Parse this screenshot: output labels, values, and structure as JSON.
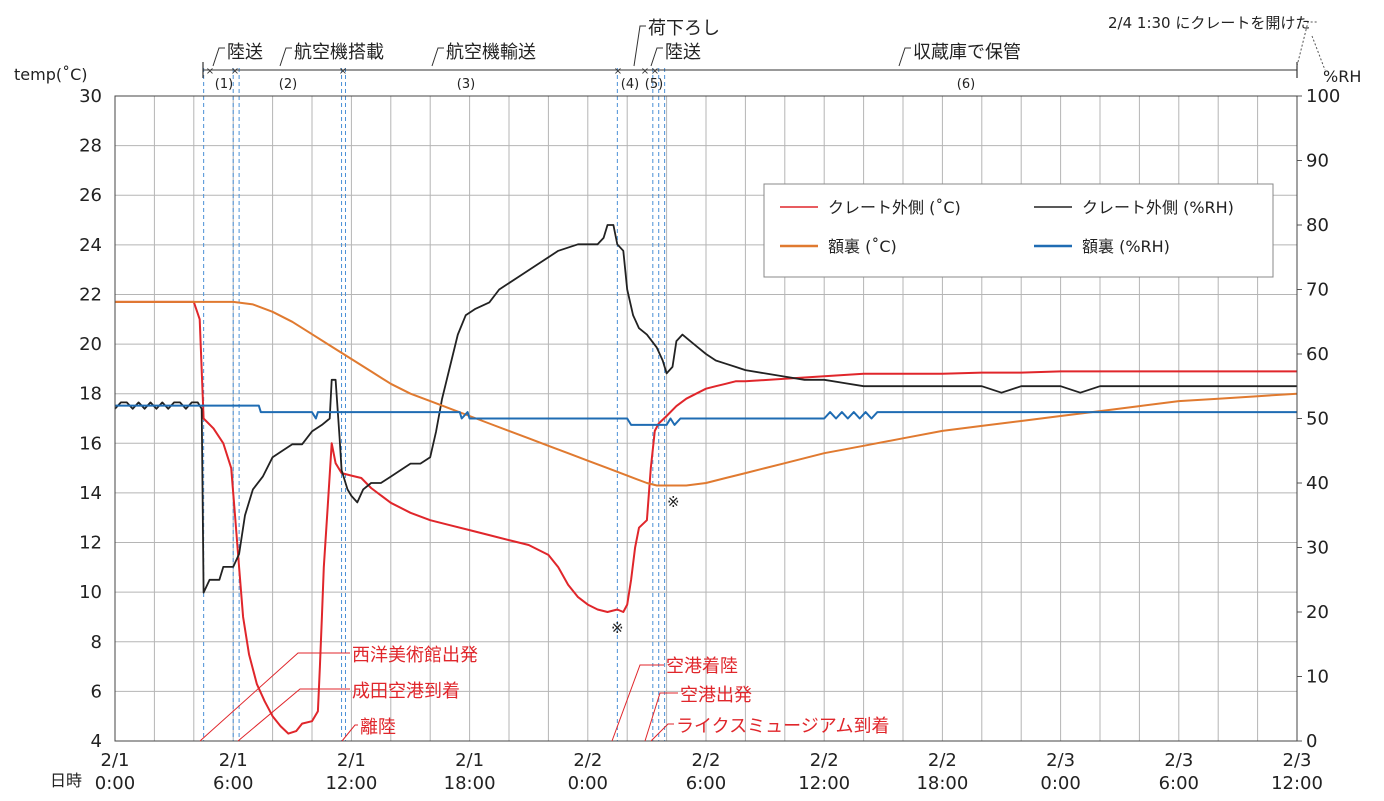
{
  "chart_data": {
    "type": "line",
    "y_left_label": "temp(˚C)",
    "y_right_label": "%RH",
    "x_axis_label": "日時",
    "y_left_range": [
      4,
      30
    ],
    "y_left_ticks": [
      "4",
      "6",
      "8",
      "10",
      "12",
      "14",
      "16",
      "18",
      "20",
      "22",
      "24",
      "26",
      "28",
      "30"
    ],
    "y_right_range": [
      0,
      100
    ],
    "y_right_ticks": [
      "0",
      "10",
      "20",
      "30",
      "40",
      "50",
      "60",
      "70",
      "80",
      "90",
      "100"
    ],
    "x_range_hours": [
      0,
      60
    ],
    "x_ticks": [
      {
        "date": "2/1",
        "time": "0:00"
      },
      {
        "date": "2/1",
        "time": "6:00"
      },
      {
        "date": "2/1",
        "time": "12:00"
      },
      {
        "date": "2/1",
        "time": "18:00"
      },
      {
        "date": "2/2",
        "time": "0:00"
      },
      {
        "date": "2/2",
        "time": "6:00"
      },
      {
        "date": "2/2",
        "time": "12:00"
      },
      {
        "date": "2/2",
        "time": "18:00"
      },
      {
        "date": "2/3",
        "time": "0:00"
      },
      {
        "date": "2/3",
        "time": "6:00"
      },
      {
        "date": "2/3",
        "time": "12:00"
      }
    ],
    "legend": [
      {
        "label": "クレート外側 (˚C)",
        "color": "#e0262b"
      },
      {
        "label": "クレート外側 (%RH)",
        "color": "#222222"
      },
      {
        "label": "額裏 (˚C)",
        "color": "#e07a30"
      },
      {
        "label": "額裏 (%RH)",
        "color": "#1f6cb3"
      }
    ],
    "phases": [
      {
        "label": "陸送",
        "num": "(1)"
      },
      {
        "label": "航空機搭載",
        "num": "(2)"
      },
      {
        "label": "航空機輸送",
        "num": "(3)"
      },
      {
        "label": "荷下ろし",
        "num": "(4)"
      },
      {
        "label": "陸送",
        "num": "(5)"
      },
      {
        "label": "収蔵庫で保管",
        "num": "(6)"
      }
    ],
    "top_note": "2/4 1:30 にクレートを開けた",
    "events": [
      "西洋美術館出発",
      "成田空港到着",
      "離陸",
      "空港着陸",
      "空港出発",
      "ライクスミュージアム到着"
    ],
    "marker_symbol": "※",
    "series": [
      {
        "name": "クレート外側 (˚C)",
        "axis": "left",
        "color": "#e0262b",
        "points": [
          [
            0,
            21.7
          ],
          [
            4.0,
            21.7
          ],
          [
            4.3,
            21.0
          ],
          [
            4.5,
            17.0
          ],
          [
            5.0,
            16.6
          ],
          [
            5.5,
            16.0
          ],
          [
            5.9,
            15.0
          ],
          [
            6.1,
            13.0
          ],
          [
            6.3,
            11.0
          ],
          [
            6.5,
            9.0
          ],
          [
            6.8,
            7.5
          ],
          [
            7.2,
            6.3
          ],
          [
            7.6,
            5.6
          ],
          [
            8.0,
            5.0
          ],
          [
            8.4,
            4.6
          ],
          [
            8.8,
            4.3
          ],
          [
            9.2,
            4.4
          ],
          [
            9.5,
            4.7
          ],
          [
            10.0,
            4.8
          ],
          [
            10.3,
            5.2
          ],
          [
            10.4,
            7.0
          ],
          [
            10.5,
            9.0
          ],
          [
            10.6,
            11.0
          ],
          [
            10.8,
            13.5
          ],
          [
            11.0,
            16.0
          ],
          [
            11.2,
            15.2
          ],
          [
            11.5,
            14.8
          ],
          [
            12.0,
            14.7
          ],
          [
            12.5,
            14.6
          ],
          [
            13.0,
            14.2
          ],
          [
            14.0,
            13.6
          ],
          [
            15.0,
            13.2
          ],
          [
            16.0,
            12.9
          ],
          [
            17.0,
            12.7
          ],
          [
            18.0,
            12.5
          ],
          [
            19.0,
            12.3
          ],
          [
            20.0,
            12.1
          ],
          [
            21.0,
            11.9
          ],
          [
            22.0,
            11.5
          ],
          [
            22.5,
            11.0
          ],
          [
            23.0,
            10.3
          ],
          [
            23.5,
            9.8
          ],
          [
            24.0,
            9.5
          ],
          [
            24.5,
            9.3
          ],
          [
            25.0,
            9.2
          ],
          [
            25.5,
            9.3
          ],
          [
            25.8,
            9.2
          ],
          [
            26.0,
            9.5
          ],
          [
            26.2,
            10.5
          ],
          [
            26.4,
            11.8
          ],
          [
            26.6,
            12.6
          ],
          [
            27.0,
            12.9
          ],
          [
            27.2,
            15.0
          ],
          [
            27.4,
            16.5
          ],
          [
            27.6,
            16.8
          ],
          [
            28.0,
            17.1
          ],
          [
            28.5,
            17.5
          ],
          [
            29.0,
            17.8
          ],
          [
            29.5,
            18.0
          ],
          [
            30.0,
            18.2
          ],
          [
            30.5,
            18.3
          ],
          [
            31.0,
            18.4
          ],
          [
            31.5,
            18.5
          ],
          [
            32.0,
            18.5
          ],
          [
            34.0,
            18.6
          ],
          [
            36.0,
            18.7
          ],
          [
            38.0,
            18.8
          ],
          [
            40.0,
            18.8
          ],
          [
            42.0,
            18.8
          ],
          [
            44.0,
            18.85
          ],
          [
            46.0,
            18.85
          ],
          [
            48.0,
            18.9
          ],
          [
            52.0,
            18.9
          ],
          [
            56.0,
            18.9
          ],
          [
            60.0,
            18.9
          ]
        ]
      },
      {
        "name": "クレート外側 (%RH)",
        "axis": "right",
        "color": "#222222",
        "points": [
          [
            0,
            51.5
          ],
          [
            0.3,
            52.5
          ],
          [
            0.6,
            52.5
          ],
          [
            0.9,
            51.5
          ],
          [
            1.2,
            52.5
          ],
          [
            1.5,
            51.5
          ],
          [
            1.8,
            52.5
          ],
          [
            2.1,
            51.5
          ],
          [
            2.4,
            52.5
          ],
          [
            2.7,
            51.5
          ],
          [
            3.0,
            52.5
          ],
          [
            3.3,
            52.5
          ],
          [
            3.6,
            51.5
          ],
          [
            3.9,
            52.5
          ],
          [
            4.2,
            52.5
          ],
          [
            4.4,
            51.5
          ],
          [
            4.5,
            23.0
          ],
          [
            4.8,
            25.0
          ],
          [
            5.3,
            25.0
          ],
          [
            5.5,
            27.0
          ],
          [
            6.0,
            27.0
          ],
          [
            6.3,
            29.0
          ],
          [
            6.6,
            35.0
          ],
          [
            7.0,
            39.0
          ],
          [
            7.5,
            41.0
          ],
          [
            8.0,
            44.0
          ],
          [
            8.5,
            45.0
          ],
          [
            9.0,
            46.0
          ],
          [
            9.5,
            46.0
          ],
          [
            10.0,
            48.0
          ],
          [
            10.5,
            49.0
          ],
          [
            10.9,
            50.0
          ],
          [
            11.0,
            56.0
          ],
          [
            11.2,
            56.0
          ],
          [
            11.4,
            47.0
          ],
          [
            11.5,
            42.0
          ],
          [
            11.8,
            39.0
          ],
          [
            12.0,
            38.0
          ],
          [
            12.3,
            37.0
          ],
          [
            12.6,
            39.0
          ],
          [
            13.0,
            40.0
          ],
          [
            13.5,
            40.0
          ],
          [
            14.0,
            41.0
          ],
          [
            14.5,
            42.0
          ],
          [
            15.0,
            43.0
          ],
          [
            15.5,
            43.0
          ],
          [
            16.0,
            44.0
          ],
          [
            16.3,
            48.0
          ],
          [
            16.6,
            53.0
          ],
          [
            17.0,
            58.0
          ],
          [
            17.4,
            63.0
          ],
          [
            17.8,
            66.0
          ],
          [
            18.3,
            67.0
          ],
          [
            19.0,
            68.0
          ],
          [
            19.5,
            70.0
          ],
          [
            20.5,
            72.0
          ],
          [
            21.5,
            74.0
          ],
          [
            22.5,
            76.0
          ],
          [
            23.5,
            77.0
          ],
          [
            24.0,
            77.0
          ],
          [
            24.5,
            77.0
          ],
          [
            24.8,
            78.0
          ],
          [
            25.0,
            80.0
          ],
          [
            25.3,
            80.0
          ],
          [
            25.5,
            77.0
          ],
          [
            25.8,
            76.0
          ],
          [
            26.0,
            70.0
          ],
          [
            26.3,
            66.0
          ],
          [
            26.6,
            64.0
          ],
          [
            27.0,
            63.0
          ],
          [
            27.5,
            61.0
          ],
          [
            27.8,
            59.0
          ],
          [
            28.0,
            57.0
          ],
          [
            28.3,
            58.0
          ],
          [
            28.5,
            62.0
          ],
          [
            28.8,
            63.0
          ],
          [
            29.2,
            62.0
          ],
          [
            29.6,
            61.0
          ],
          [
            30.0,
            60.0
          ],
          [
            30.5,
            59.0
          ],
          [
            31.0,
            58.5
          ],
          [
            31.5,
            58.0
          ],
          [
            32.0,
            57.5
          ],
          [
            33.0,
            57.0
          ],
          [
            34.0,
            56.5
          ],
          [
            35.0,
            56.0
          ],
          [
            36.0,
            56.0
          ],
          [
            37.0,
            55.5
          ],
          [
            38.0,
            55.0
          ],
          [
            40.0,
            55.0
          ],
          [
            42.0,
            55.0
          ],
          [
            44.0,
            55.0
          ],
          [
            45.0,
            54.0
          ],
          [
            46.0,
            55.0
          ],
          [
            48.0,
            55.0
          ],
          [
            49.0,
            54.0
          ],
          [
            50.0,
            55.0
          ],
          [
            52.0,
            55.0
          ],
          [
            56.0,
            55.0
          ],
          [
            60.0,
            55.0
          ]
        ]
      },
      {
        "name": "額裏 (˚C)",
        "axis": "left",
        "color": "#e07a30",
        "points": [
          [
            0,
            21.7
          ],
          [
            4.0,
            21.7
          ],
          [
            6.0,
            21.7
          ],
          [
            7.0,
            21.6
          ],
          [
            8.0,
            21.3
          ],
          [
            9.0,
            20.9
          ],
          [
            10.0,
            20.4
          ],
          [
            11.0,
            19.9
          ],
          [
            12.0,
            19.4
          ],
          [
            13.0,
            18.9
          ],
          [
            14.0,
            18.4
          ],
          [
            15.0,
            18.0
          ],
          [
            16.0,
            17.7
          ],
          [
            17.0,
            17.4
          ],
          [
            18.0,
            17.1
          ],
          [
            19.0,
            16.8
          ],
          [
            20.0,
            16.5
          ],
          [
            21.0,
            16.2
          ],
          [
            22.0,
            15.9
          ],
          [
            23.0,
            15.6
          ],
          [
            24.0,
            15.3
          ],
          [
            25.0,
            15.0
          ],
          [
            26.0,
            14.7
          ],
          [
            27.0,
            14.4
          ],
          [
            27.5,
            14.3
          ],
          [
            28.0,
            14.3
          ],
          [
            29.0,
            14.3
          ],
          [
            30.0,
            14.4
          ],
          [
            31.0,
            14.6
          ],
          [
            32.0,
            14.8
          ],
          [
            33.0,
            15.0
          ],
          [
            34.0,
            15.2
          ],
          [
            35.0,
            15.4
          ],
          [
            36.0,
            15.6
          ],
          [
            38.0,
            15.9
          ],
          [
            40.0,
            16.2
          ],
          [
            42.0,
            16.5
          ],
          [
            44.0,
            16.7
          ],
          [
            46.0,
            16.9
          ],
          [
            48.0,
            17.1
          ],
          [
            50.0,
            17.3
          ],
          [
            52.0,
            17.5
          ],
          [
            54.0,
            17.7
          ],
          [
            56.0,
            17.8
          ],
          [
            58.0,
            17.9
          ],
          [
            60.0,
            18.0
          ]
        ]
      },
      {
        "name": "額裏 (%RH)",
        "axis": "right",
        "color": "#1f6cb3",
        "points": [
          [
            0,
            52.0
          ],
          [
            4.0,
            52.0
          ],
          [
            6.0,
            52.0
          ],
          [
            7.3,
            52.0
          ],
          [
            7.4,
            51.0
          ],
          [
            10.0,
            51.0
          ],
          [
            10.2,
            50.0
          ],
          [
            10.3,
            51.0
          ],
          [
            13.0,
            51.0
          ],
          [
            17.5,
            51.0
          ],
          [
            17.6,
            50.0
          ],
          [
            17.9,
            51.0
          ],
          [
            18.0,
            50.0
          ],
          [
            26.0,
            50.0
          ],
          [
            26.2,
            49.0
          ],
          [
            28.0,
            49.0
          ],
          [
            28.2,
            50.0
          ],
          [
            28.4,
            49.0
          ],
          [
            28.7,
            50.0
          ],
          [
            36.0,
            50.0
          ],
          [
            36.3,
            51.0
          ],
          [
            36.6,
            50.0
          ],
          [
            36.9,
            51.0
          ],
          [
            37.2,
            50.0
          ],
          [
            37.5,
            51.0
          ],
          [
            37.8,
            50.0
          ],
          [
            38.1,
            51.0
          ],
          [
            38.4,
            50.0
          ],
          [
            38.7,
            51.0
          ],
          [
            39.0,
            51.0
          ],
          [
            44.0,
            51.0
          ],
          [
            52.0,
            51.0
          ],
          [
            60.0,
            51.0
          ]
        ]
      }
    ],
    "vlines_hours": [
      4.5,
      6.0,
      6.3,
      11.5,
      11.7,
      25.5,
      27.3,
      27.6,
      27.9
    ]
  }
}
